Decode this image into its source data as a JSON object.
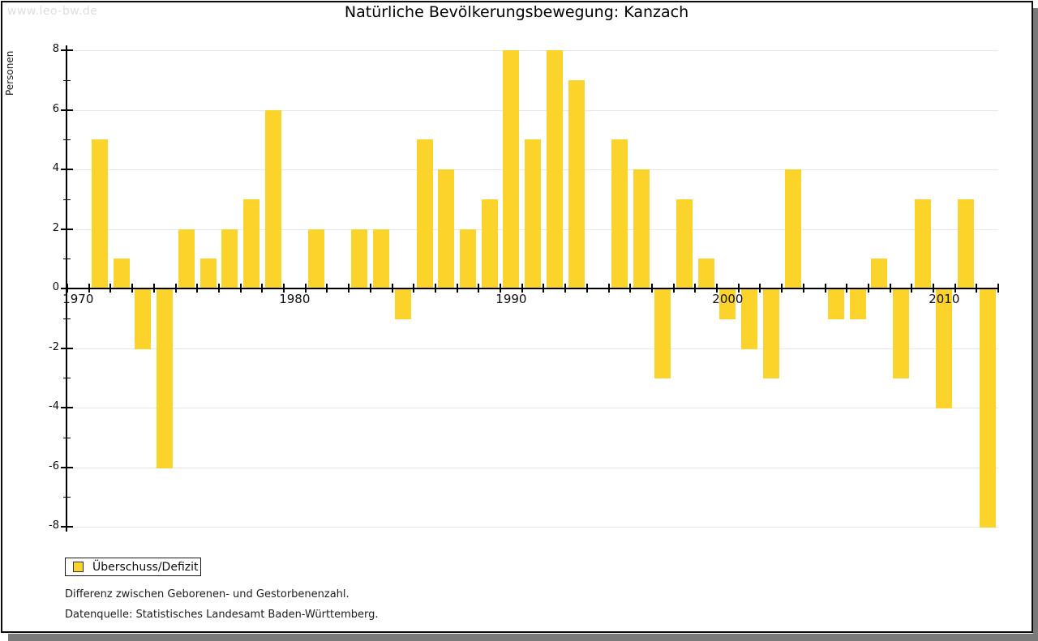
{
  "watermark": "www.leo-bw.de",
  "title": "Natürliche Bevölkerungsbewegung: Kanzach",
  "legend": {
    "label": "Überschuss/Defizit"
  },
  "notes": {
    "line1": "Differenz zwischen Geborenen- und Gestorbenenzahl.",
    "line2": "Datenquelle: Statistisches Landesamt Baden-Württemberg."
  },
  "colors": {
    "bar": "#FBD32B",
    "grid": "#E6E6E6",
    "axis": "#000000",
    "watermark": "#DDDDDD",
    "shadow": "#7A7A7A"
  },
  "chart_data": {
    "type": "bar",
    "title": "Natürliche Bevölkerungsbewegung: Kanzach",
    "xlabel": "",
    "ylabel": "Personen",
    "legend_label": "Überschuss/Defizit",
    "legend_position": "bottom-left",
    "grid": true,
    "ylim": [
      -8,
      8
    ],
    "ytick_labels": [
      8,
      6,
      4,
      2,
      0,
      -2,
      -4,
      -6,
      -8
    ],
    "ytick_minor": [
      7,
      5,
      3,
      1,
      -1,
      -3,
      -5,
      -7
    ],
    "xtick_labels": [
      "1970",
      "1980",
      "1990",
      "2000",
      "2010"
    ],
    "x": [
      1970,
      1971,
      1972,
      1973,
      1974,
      1975,
      1976,
      1977,
      1978,
      1979,
      1980,
      1981,
      1982,
      1983,
      1984,
      1985,
      1986,
      1987,
      1988,
      1989,
      1990,
      1991,
      1992,
      1993,
      1994,
      1995,
      1996,
      1997,
      1998,
      1999,
      2000,
      2001,
      2002,
      2003,
      2004,
      2005,
      2006,
      2007,
      2008,
      2009,
      2010,
      2011,
      2012
    ],
    "values": [
      0,
      5,
      1,
      -2,
      -6,
      2,
      1,
      2,
      3,
      6,
      0,
      2,
      0,
      2,
      2,
      -1,
      5,
      4,
      2,
      3,
      8,
      5,
      8,
      7,
      0,
      5,
      4,
      -3,
      3,
      1,
      -1,
      -2,
      -3,
      4,
      0,
      -1,
      -1,
      1,
      -3,
      3,
      -4,
      3,
      -8
    ]
  }
}
